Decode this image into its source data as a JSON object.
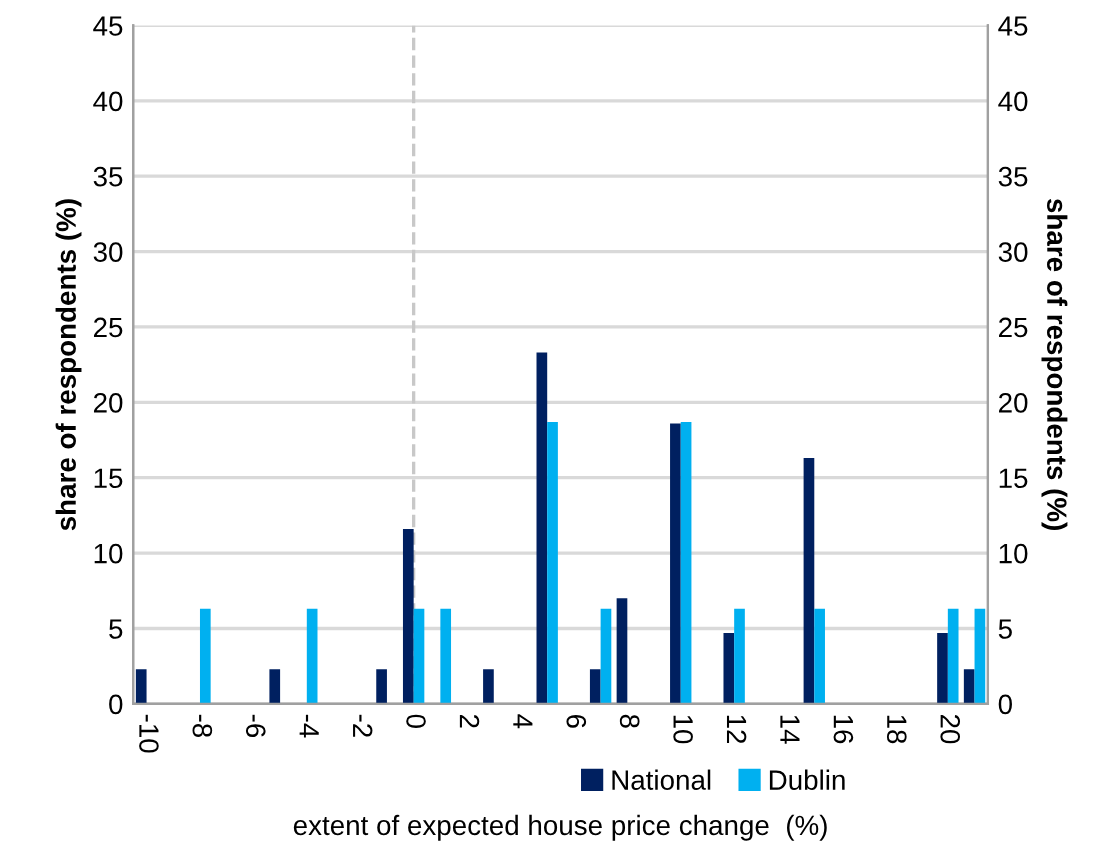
{
  "chart_data": {
    "type": "bar",
    "xlabel": "extent of expected house price change  (%)",
    "ylabel": "share of respondents (%)",
    "y2label": "share of respondents (%)",
    "x": [
      -10,
      -9,
      -8,
      -7,
      -6,
      -5,
      -4,
      -3,
      -2,
      -1,
      0,
      1,
      2,
      3,
      4,
      5,
      6,
      7,
      8,
      9,
      10,
      11,
      12,
      13,
      14,
      15,
      16,
      17,
      18,
      19,
      20,
      21
    ],
    "series": [
      {
        "name": "National",
        "color": "#002060",
        "values": [
          2.3,
          0,
          0,
          0,
          0,
          2.3,
          0,
          0,
          0,
          2.3,
          11.6,
          0,
          0,
          2.3,
          0,
          23.3,
          0,
          2.3,
          7.0,
          0,
          18.6,
          0,
          4.7,
          0,
          0,
          16.3,
          0,
          0,
          0,
          0,
          4.7,
          2.3
        ]
      },
      {
        "name": "Dublin",
        "color": "#00b0f0",
        "values": [
          0,
          0,
          6.3,
          0,
          0,
          0,
          6.3,
          0,
          0,
          0,
          6.3,
          6.3,
          0,
          0,
          0,
          18.7,
          0,
          6.3,
          0,
          0,
          18.7,
          0,
          6.3,
          0,
          0,
          6.3,
          0,
          0,
          0,
          0,
          6.3,
          6.3
        ]
      }
    ],
    "xlim": [
      -10.5,
      21.5
    ],
    "xticks": [
      -10,
      -8,
      -6,
      -4,
      -2,
      0,
      2,
      4,
      6,
      8,
      10,
      12,
      14,
      16,
      18,
      20
    ],
    "ylim": [
      0,
      45
    ],
    "yticks": [
      0,
      5,
      10,
      15,
      20,
      25,
      30,
      35,
      40,
      45
    ],
    "y2lim": [
      0,
      45
    ],
    "y2ticks": [
      0,
      5,
      10,
      15,
      20,
      25,
      30,
      35,
      40,
      45
    ],
    "ref_lines": [
      {
        "axis": "x",
        "value": 0,
        "color": "#c8c8c8",
        "line_style": "dashed"
      }
    ],
    "grid": "y",
    "legend": "bottom"
  }
}
